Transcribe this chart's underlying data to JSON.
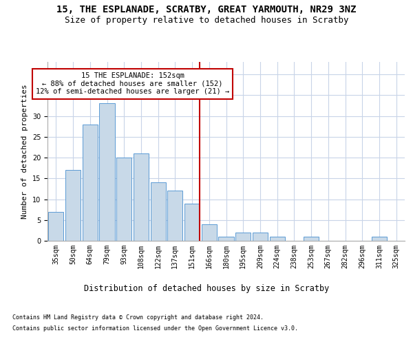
{
  "title1": "15, THE ESPLANADE, SCRATBY, GREAT YARMOUTH, NR29 3NZ",
  "title2": "Size of property relative to detached houses in Scratby",
  "xlabel": "Distribution of detached houses by size in Scratby",
  "ylabel": "Number of detached properties",
  "categories": [
    "35sqm",
    "50sqm",
    "64sqm",
    "79sqm",
    "93sqm",
    "108sqm",
    "122sqm",
    "137sqm",
    "151sqm",
    "166sqm",
    "180sqm",
    "195sqm",
    "209sqm",
    "224sqm",
    "238sqm",
    "253sqm",
    "267sqm",
    "282sqm",
    "296sqm",
    "311sqm",
    "325sqm"
  ],
  "values": [
    7,
    17,
    28,
    33,
    20,
    21,
    14,
    12,
    9,
    4,
    1,
    2,
    2,
    1,
    0,
    1,
    0,
    0,
    0,
    1,
    0
  ],
  "bar_color": "#c8d9e8",
  "bar_edge_color": "#5b9bd5",
  "marker_index": 8,
  "marker_line_color": "#c00000",
  "annotation_line1": "15 THE ESPLANADE: 152sqm",
  "annotation_line2": "← 88% of detached houses are smaller (152)",
  "annotation_line3": "12% of semi-detached houses are larger (21) →",
  "annotation_box_color": "#ffffff",
  "annotation_box_edge_color": "#c00000",
  "ylim": [
    0,
    43
  ],
  "footnote1": "Contains HM Land Registry data © Crown copyright and database right 2024.",
  "footnote2": "Contains public sector information licensed under the Open Government Licence v3.0.",
  "background_color": "#ffffff",
  "grid_color": "#c8d4e8",
  "title1_fontsize": 10,
  "title2_fontsize": 9,
  "tick_fontsize": 7,
  "ylabel_fontsize": 8,
  "xlabel_fontsize": 8.5,
  "footnote_fontsize": 6,
  "annotation_fontsize": 7.5
}
